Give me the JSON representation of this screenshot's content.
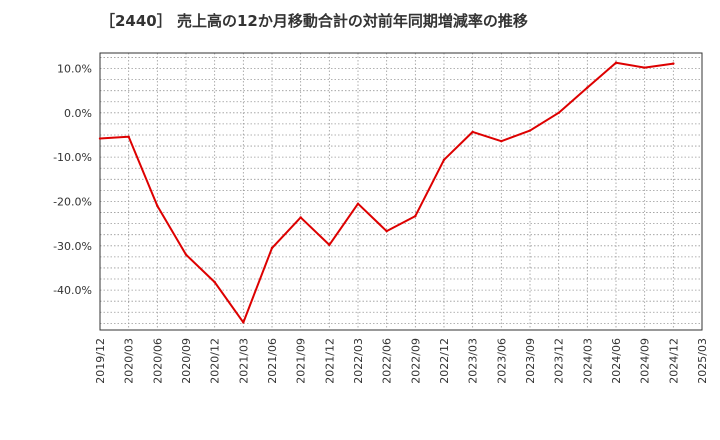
{
  "chart_data": {
    "type": "line",
    "title": "［2440］ 売上高の12か月移動合計の対前年同期増減率の推移",
    "xlabel": "",
    "ylabel": "",
    "ylim": [
      -49,
      13.5
    ],
    "yticks": [
      10,
      0,
      -10,
      -20,
      -30,
      -40
    ],
    "ytick_labels": [
      "10.0%",
      "0.0%",
      "-10.0%",
      "-20.0%",
      "-30.0%",
      "-40.0%"
    ],
    "categories": [
      "2019/12",
      "2020/03",
      "2020/06",
      "2020/09",
      "2020/12",
      "2021/03",
      "2021/06",
      "2021/09",
      "2021/12",
      "2022/03",
      "2022/06",
      "2022/09",
      "2022/12",
      "2023/03",
      "2023/06",
      "2023/09",
      "2023/12",
      "2024/03",
      "2024/06",
      "2024/09",
      "2024/12",
      "2025/03"
    ],
    "series": [
      {
        "name": "売上高の12か月移動合計の対前年同期増減率",
        "color": "#dd0000",
        "values": [
          -5.8,
          -5.4,
          -21.0,
          -32.0,
          -38.2,
          -47.3,
          -30.5,
          -23.6,
          -29.8,
          -20.5,
          -26.7,
          -23.3,
          -10.6,
          -4.3,
          -6.4,
          -4.0,
          0.0,
          5.7,
          11.3,
          10.2,
          11.1,
          null
        ]
      }
    ],
    "grid": true,
    "legend": "none"
  }
}
